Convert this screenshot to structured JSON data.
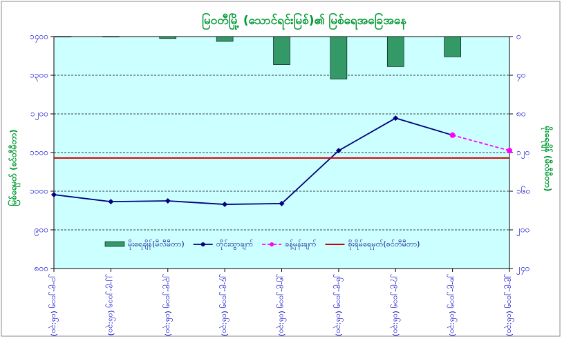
{
  "chart_data": {
    "type": "combo",
    "title": "မြဝတီမြို့ (သောင်ရင်းမြစ်)၏ မြစ်ရေအခြေအနေ",
    "y_label": "မြစ်ရေမှတ် (စင်တီမီတာ)",
    "y2_label": "မိုးရေချိန် (မီလီမီတာ)",
    "categories": [
      "၂၁-၉-၂၀၁၅ (၀၆:၃၀)",
      "၂၂-၉-၂၀၁၅ (၀၆:၃၀)",
      "၂၃-၉-၂၀၁၅ (၀၆:၃၀)",
      "၂၄-၉-၂၀၁၅ (၀၆:၃၀)",
      "၂၅-၉-၂၀၁၅ (၀၆:၃၀)",
      "၂၆-၉-၂၀၁၅ (၀၆:၃၀)",
      "၂၇-၉-၂၀၁၅ (၀၆:၃၀)",
      "၂၈-၉-၂၀၁၅ (၀၆:၃၀)",
      "၂၉-၉-၂၀၁၅ (၀၆:၃၀)"
    ],
    "series": [
      {
        "name": "မိုးရေချိန်(မီလီမီတာ)",
        "kind": "bar",
        "axis": "y2",
        "color": "#339966",
        "values": [
          0.5,
          0.5,
          2,
          5,
          29,
          44,
          31,
          21,
          null
        ]
      },
      {
        "name": "တိုင်းထွာချက်",
        "kind": "line",
        "color": "#000080",
        "values": [
          991,
          973,
          975,
          966,
          968,
          1105,
          1189,
          1145,
          null
        ]
      },
      {
        "name": "ခန့်မှန်းချက်",
        "kind": "line",
        "dashed": true,
        "color": "#ff00ff",
        "values": [
          null,
          null,
          null,
          null,
          null,
          null,
          null,
          1145,
          1105
        ]
      }
    ],
    "reference_line": {
      "name": "စိုးရိမ်ရေမှတ်(စင်တီမီတာ)",
      "value": 1086,
      "color": "#cc0000"
    },
    "ylim": [
      800,
      1400
    ],
    "yticks": [
      {
        "value": 800,
        "label": "၈၀၀"
      },
      {
        "value": 900,
        "label": "၉၀၀"
      },
      {
        "value": 1000,
        "label": "၁၀၀၀"
      },
      {
        "value": 1100,
        "label": "၁၁၀၀"
      },
      {
        "value": 1200,
        "label": "၁၂၀၀"
      },
      {
        "value": 1300,
        "label": "၁၃၀၀"
      },
      {
        "value": 1400,
        "label": "၁၄၀၀"
      }
    ],
    "y2lim": [
      240,
      0
    ],
    "y2ticks": [
      {
        "value": 0,
        "label": "၀"
      },
      {
        "value": 40,
        "label": "၄၀"
      },
      {
        "value": 80,
        "label": "၈၀"
      },
      {
        "value": 120,
        "label": "၁၂၀"
      },
      {
        "value": 160,
        "label": "၁၆၀"
      },
      {
        "value": 200,
        "label": "၂၀၀"
      },
      {
        "value": 240,
        "label": "၂၄၀"
      }
    ],
    "grid": true,
    "background": "#ccffff"
  }
}
